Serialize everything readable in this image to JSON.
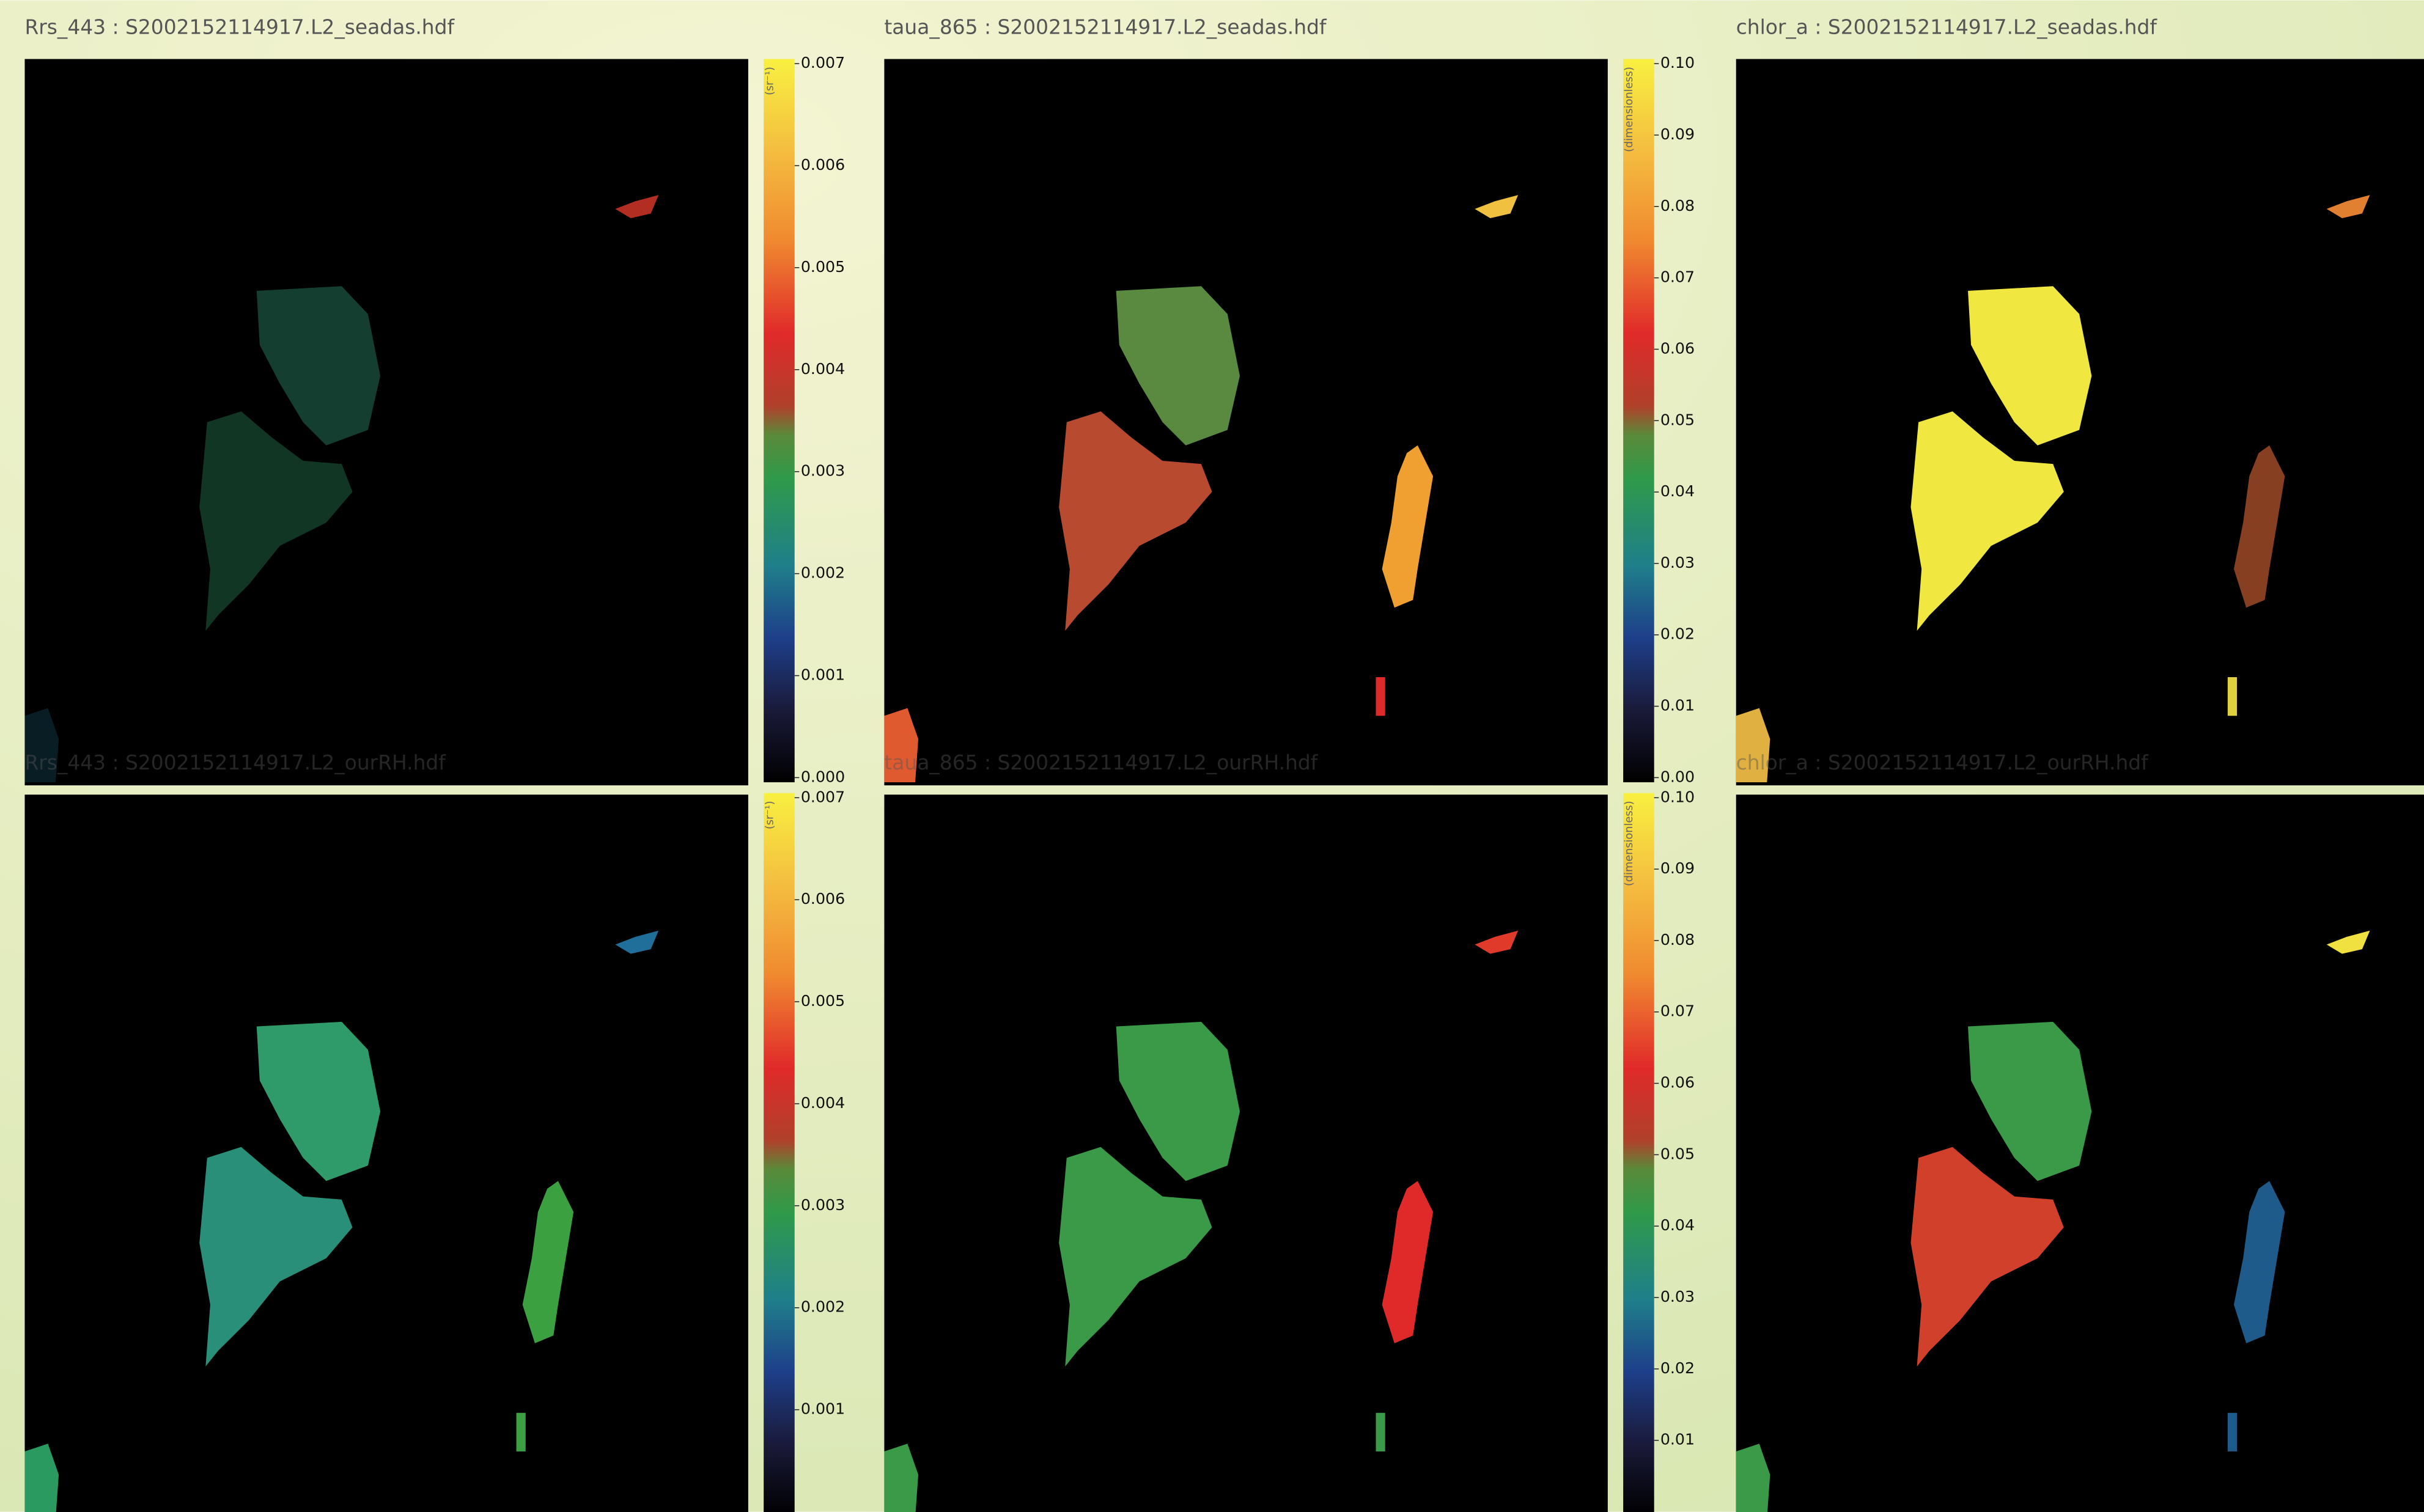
{
  "chart_data": [
    {
      "type": "image",
      "title": "Rrs_443 : S2002152114917.L2_seadas.hdf",
      "colorbar": {
        "label": "(sr⁻¹)",
        "lim": [
          0,
          0.007
        ],
        "ticks": [
          {
            "value": 0,
            "label": "0.000"
          },
          0.001,
          0.002,
          0.003,
          0.004,
          0.005,
          0.006,
          0.007
        ]
      }
    },
    {
      "type": "image",
      "title": "taua_865 : S2002152114917.L2_seadas.hdf",
      "colorbar": {
        "label": "(dimensionless)",
        "lim": [
          0,
          0.1
        ],
        "ticks": [
          {
            "value": 0,
            "label": "0.00"
          },
          0.01,
          0.02,
          0.03,
          0.04,
          0.05,
          0.06,
          0.07,
          0.08,
          0.09,
          {
            "value": 0.1,
            "label": "0.10"
          }
        ]
      }
    },
    {
      "type": "image",
      "title": "chlor_a : S2002152114917.L2_seadas.hdf"
    },
    {
      "type": "image",
      "title": "Rrs_443 : S2002152114917.L2_ourRH.hdf",
      "colorbar": {
        "label": "(sr⁻¹)",
        "lim": [
          0,
          0.007
        ],
        "ticks": [
          0.001,
          0.002,
          0.003,
          0.004,
          0.005,
          0.006,
          0.007
        ]
      }
    },
    {
      "type": "image",
      "title": "taua_865 : S2002152114917.L2_ourRH.hdf",
      "colorbar": {
        "label": "(dimensionless)",
        "lim": [
          0,
          0.1
        ],
        "ticks": [
          0.01,
          0.02,
          0.03,
          0.04,
          0.05,
          0.06,
          0.07,
          0.08,
          0.09,
          {
            "value": 0.1,
            "label": "0.10"
          }
        ]
      }
    },
    {
      "type": "image",
      "title": "chlor_a : S2002152114917.L2_ourRH.hdf"
    }
  ]
}
